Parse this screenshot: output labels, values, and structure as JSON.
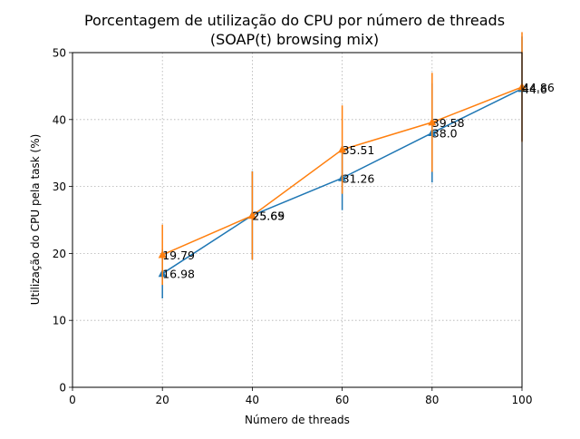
{
  "chart_data": {
    "type": "line",
    "title": "Porcentagem de utilização do CPU por número de threads",
    "subtitle": "(SOAP(t) browsing mix)",
    "xlabel": "Número de threads",
    "ylabel": "Utilização do CPU pela task (%)",
    "xlim": [
      0,
      100
    ],
    "ylim": [
      0,
      50
    ],
    "xticks": [
      0,
      20,
      40,
      60,
      80,
      100
    ],
    "yticks": [
      0,
      10,
      20,
      30,
      40,
      50
    ],
    "grid": true,
    "legend": "none",
    "x": [
      20,
      40,
      60,
      80,
      100
    ],
    "series": [
      {
        "color": "#1f77b4",
        "marker": "triangle",
        "values": [
          16.98,
          25.69,
          31.26,
          38.0,
          44.6
        ],
        "labels": [
          "16.98",
          "25.69",
          "31.26",
          "38.0",
          "44.6"
        ],
        "error": [
          3.7,
          6.6,
          4.8,
          7.4,
          7.8
        ]
      },
      {
        "color": "#ff7f0e",
        "marker": "triangle",
        "values": [
          19.79,
          25.65,
          35.51,
          39.58,
          44.86
        ],
        "labels": [
          "19.79",
          "25.65",
          "35.51",
          "39.58",
          "44.86"
        ],
        "error": [
          4.5,
          6.6,
          6.6,
          7.4,
          8.2
        ]
      }
    ]
  }
}
